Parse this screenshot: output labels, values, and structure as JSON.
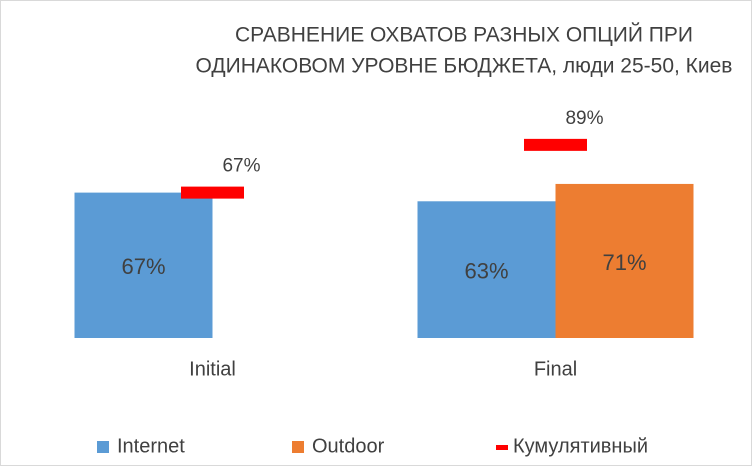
{
  "chart_data": {
    "type": "bar",
    "title": [
      "СРАВНЕНИЕ ОХВАТОВ РАЗНЫХ ОПЦИЙ ПРИ",
      "ОДИНАКОВОМ УРОВНЕ БЮДЖЕТА,  люди 25-50, Киев"
    ],
    "categories": [
      "Initial",
      "Final"
    ],
    "series": [
      {
        "name": "Internet",
        "color": "#5b9bd5",
        "values": [
          67,
          63
        ],
        "value_labels": [
          "67%",
          "63%"
        ]
      },
      {
        "name": "Outdoor",
        "color": "#ed7d31",
        "values": [
          null,
          71
        ],
        "value_labels": [
          null,
          "71%"
        ]
      },
      {
        "name": "Кумулятивный",
        "color": "#ff0000",
        "marker": "dash",
        "values": [
          67,
          89
        ],
        "value_labels": [
          "67%",
          "89%"
        ]
      }
    ],
    "legend": "bottom"
  }
}
